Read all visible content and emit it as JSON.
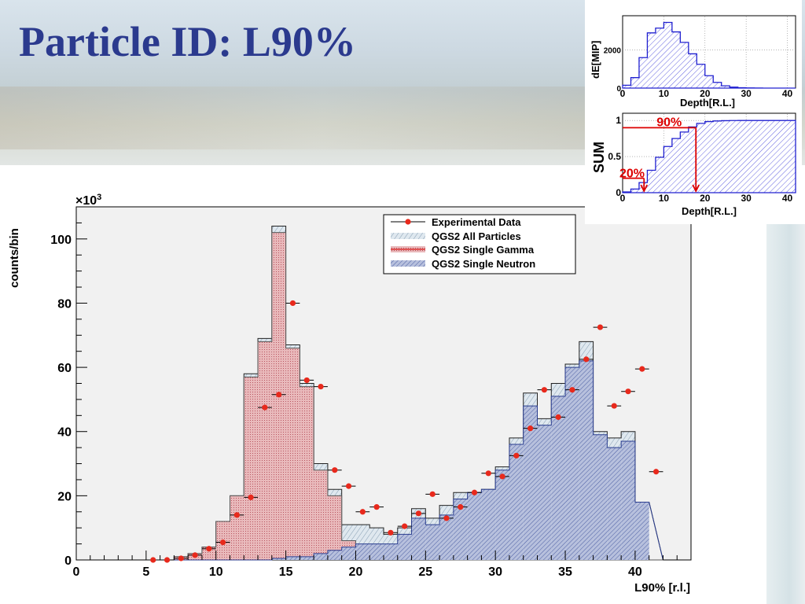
{
  "slide": {
    "title": "Particle ID: L90%",
    "colors": {
      "title": "#2b3a8e",
      "marker": "#e8291c",
      "all_fill": "#dfe8ef",
      "gamma_fill": "#e9b9bb",
      "neutron_fill": "#a9b4d6",
      "inset_line": "#2020d0",
      "inset_marker": "#dd0000"
    }
  },
  "chart_data": [
    {
      "type": "histogram",
      "title": "",
      "xlabel": "L90% [r.l.]",
      "ylabel": "counts/bin",
      "y_multiplier": "×10",
      "y_multiplier_exp": "3",
      "xlim": [
        0,
        44
      ],
      "ylim": [
        0,
        110
      ],
      "x_ticks": [
        0,
        5,
        10,
        15,
        20,
        25,
        30,
        35,
        40
      ],
      "y_ticks": [
        0,
        20,
        40,
        60,
        80,
        100
      ],
      "bin_edges": [
        7,
        8,
        9,
        10,
        11,
        12,
        13,
        14,
        15,
        16,
        17,
        18,
        19,
        20,
        21,
        22,
        23,
        24,
        25,
        26,
        27,
        28,
        29,
        30,
        31,
        32,
        33,
        34,
        35,
        36,
        37,
        38,
        39,
        40,
        41,
        42
      ],
      "legend": {
        "position": "top-right",
        "entries": [
          "Experimental Data",
          "QGS2 All Particles",
          "QGS2 Single Gamma",
          "QGS2 Single Neutron"
        ]
      },
      "series": [
        {
          "name": "QGS2 All Particles",
          "style": "hist",
          "values": [
            1,
            2,
            4,
            12,
            20,
            58,
            69,
            104,
            67,
            55,
            30,
            22,
            11,
            11,
            10,
            8,
            10,
            16,
            13,
            17,
            21,
            21,
            22,
            29,
            38,
            52,
            44,
            55,
            61,
            68,
            40,
            38,
            40,
            18
          ]
        },
        {
          "name": "QGS2 Single Gamma",
          "style": "hist",
          "values": [
            1,
            2,
            4,
            12,
            20,
            57,
            68,
            102,
            66,
            54,
            28,
            20,
            6,
            3,
            2,
            1,
            1,
            1,
            1,
            0,
            0,
            0,
            0,
            0,
            0,
            0,
            0,
            0,
            0,
            0,
            0,
            0,
            0,
            0
          ]
        },
        {
          "name": "QGS2 Single Neutron",
          "style": "hist",
          "values": [
            0,
            0,
            0,
            0,
            0,
            0,
            0,
            0.5,
            1,
            1,
            2,
            3,
            4,
            5,
            5,
            5,
            8,
            13,
            11,
            14,
            19,
            21,
            22,
            28,
            36,
            48,
            42,
            51,
            60,
            62,
            39,
            35,
            37,
            18
          ]
        },
        {
          "name": "Experimental Data",
          "style": "markers",
          "x": [
            5.5,
            6.5,
            7.5,
            8.5,
            9.5,
            10.5,
            11.5,
            12.5,
            13.5,
            14.5,
            15.5,
            16.5,
            17.5,
            18.5,
            19.5,
            20.5,
            21.5,
            22.5,
            23.5,
            24.5,
            25.5,
            26.5,
            27.5,
            28.5,
            29.5,
            30.5,
            31.5,
            32.5,
            33.5,
            34.5,
            35.5,
            36.5,
            37.5,
            38.5,
            39.5,
            40.5,
            41.5
          ],
          "values": [
            0,
            0,
            0.5,
            1.5,
            3.5,
            5.5,
            14,
            19.5,
            47.5,
            51.5,
            80,
            56,
            54,
            28,
            23,
            15,
            16.5,
            8.5,
            10.5,
            14.5,
            20.5,
            13,
            16.5,
            21,
            27,
            26,
            32.5,
            41,
            53,
            44.5,
            53,
            62.5,
            72.5,
            48,
            52.5,
            59.5,
            27.5
          ]
        }
      ]
    },
    {
      "type": "histogram",
      "title": "",
      "xlabel": "Depth[R.L.]",
      "ylabel": "dE[MIP]",
      "xlim": [
        0,
        42
      ],
      "ylim": [
        0,
        3800
      ],
      "x_ticks": [
        0,
        10,
        20,
        30,
        40
      ],
      "y_ticks": [
        0,
        2000
      ],
      "bin_edges": [
        0,
        2,
        4,
        6,
        8,
        10,
        12,
        14,
        16,
        18,
        20,
        22,
        24,
        26,
        28,
        30,
        32,
        34,
        36,
        38,
        40,
        42
      ],
      "series": [
        {
          "name": "",
          "values": [
            150,
            550,
            1600,
            2900,
            3150,
            3450,
            2950,
            2400,
            1800,
            1250,
            650,
            300,
            120,
            50,
            20,
            10,
            5,
            0,
            0,
            0,
            0
          ]
        }
      ]
    },
    {
      "type": "cumulative",
      "title": "",
      "xlabel": "Depth[R.L.]",
      "ylabel": "SUM",
      "xlim": [
        0,
        42
      ],
      "ylim": [
        0,
        1.1
      ],
      "x_ticks": [
        0,
        10,
        20,
        30,
        40
      ],
      "y_ticks": [
        0,
        0.5,
        1
      ],
      "bin_edges": [
        0,
        2,
        4,
        6,
        8,
        10,
        12,
        14,
        16,
        18,
        20,
        22,
        24,
        26,
        28,
        30,
        32,
        34,
        36,
        38,
        40,
        42
      ],
      "series": [
        {
          "name": "",
          "values": [
            0.01,
            0.05,
            0.14,
            0.31,
            0.49,
            0.64,
            0.75,
            0.84,
            0.91,
            0.96,
            0.985,
            0.993,
            0.997,
            0.999,
            1,
            1,
            1,
            1,
            1,
            1,
            1
          ]
        }
      ],
      "annotations": [
        {
          "label": "90%",
          "x": 17.8,
          "y": 0.9
        },
        {
          "label": "20%",
          "x": 5.2,
          "y": 0.2
        }
      ]
    }
  ]
}
